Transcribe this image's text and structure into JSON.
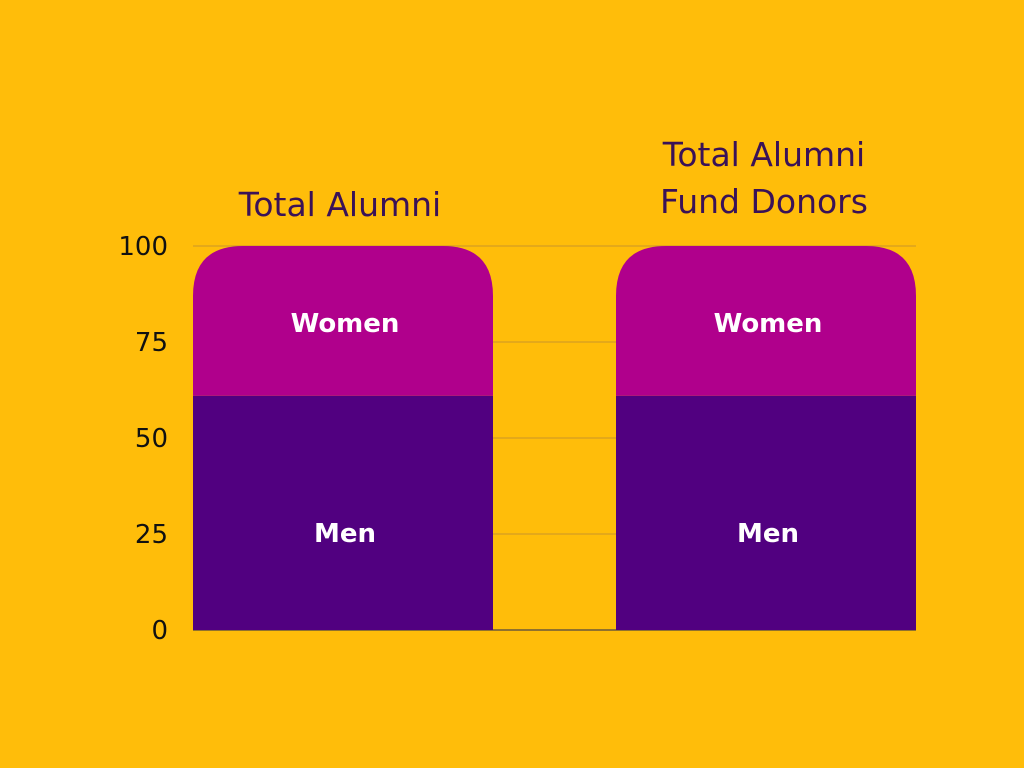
{
  "chart_data": {
    "type": "bar",
    "stacked": true,
    "categories": [
      [
        "Total Alumni"
      ],
      [
        "Total Alumni",
        "Fund Donors"
      ]
    ],
    "series": [
      {
        "name": "Men",
        "values": [
          61,
          61
        ],
        "color": "#510080"
      },
      {
        "name": "Women",
        "values": [
          39,
          39
        ],
        "color": "#B0008C"
      }
    ],
    "yticks": [
      "0",
      "25",
      "50",
      "75",
      "100"
    ],
    "ylim": [
      0,
      100
    ],
    "grid": true,
    "legend": "none",
    "background": "#FFBD0A"
  }
}
